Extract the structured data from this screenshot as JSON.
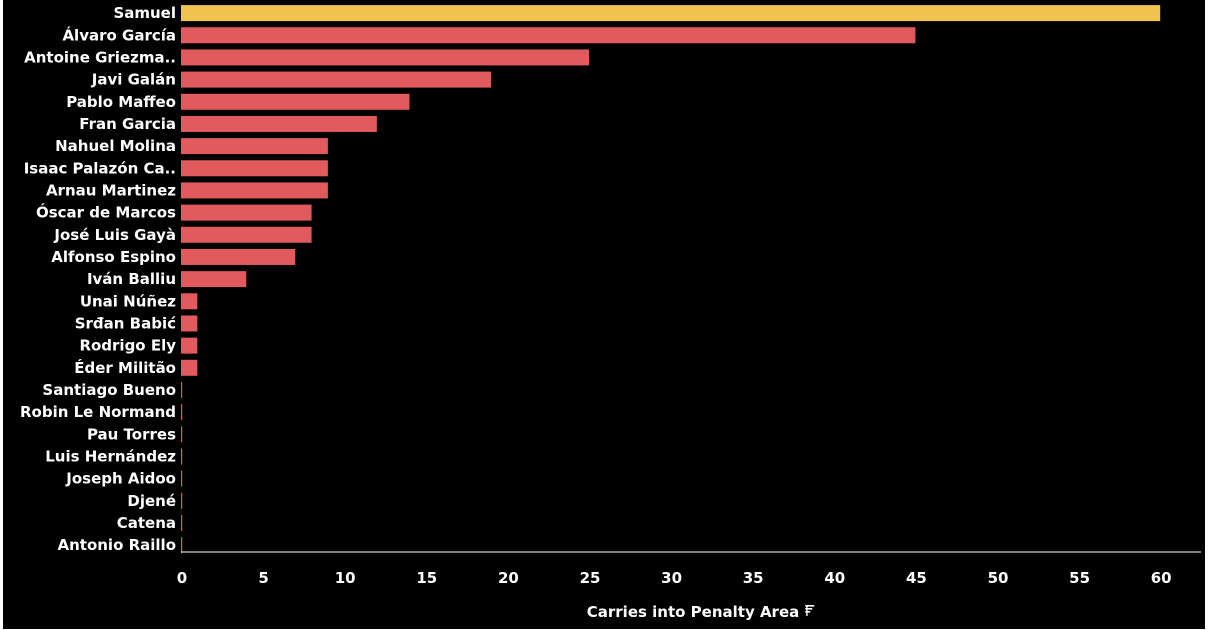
{
  "chart_data": {
    "type": "bar",
    "orientation": "horizontal",
    "categories": [
      "Samuel",
      "Álvaro García",
      "Antoine Griezma..",
      "Javi Galán",
      "Pablo Maffeo",
      "Fran Garcia",
      "Nahuel Molina",
      "Isaac Palazón Ca..",
      "Arnau Martinez",
      "Óscar de Marcos",
      "José Luis Gayà",
      "Alfonso Espino",
      "Iván Balliu",
      "Unai Núñez",
      "Srđan Babić",
      "Rodrigo Ely",
      "Éder Militão",
      "Santiago Bueno",
      "Robin Le Normand",
      "Pau Torres",
      "Luis Hernández",
      "Joseph Aidoo",
      "Djené",
      "Catena",
      "Antonio Raillo"
    ],
    "values": [
      60,
      45,
      25,
      19,
      14,
      12,
      9,
      9,
      9,
      8,
      8,
      7,
      4,
      1,
      1,
      1,
      1,
      0,
      0,
      0,
      0,
      0,
      0,
      0,
      0
    ],
    "highlight_index": 0,
    "xlabel": "Carries into Penalty Area",
    "sort_icon": "sort-descending-icon",
    "xlim": [
      0,
      62.5
    ],
    "xticks": [
      0,
      5,
      10,
      15,
      20,
      25,
      30,
      35,
      40,
      45,
      50,
      55,
      60
    ],
    "grid": false,
    "legend": "none",
    "colors": {
      "background": "#000000",
      "bar": "#e05a5e",
      "highlight": "#f0c24f",
      "text": "#ffffff",
      "axis_line": "#ffffff"
    }
  }
}
